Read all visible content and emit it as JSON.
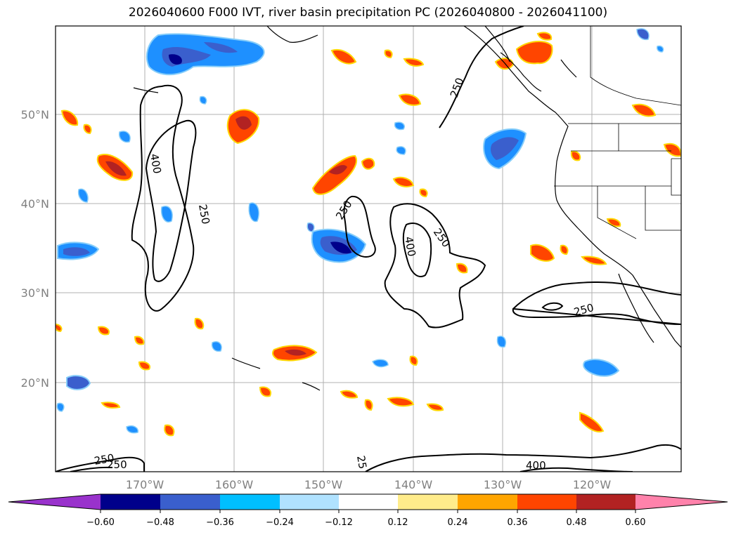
{
  "title": "2026040600 F000 IVT, river basin precipitation PC (2026040800 - 2026041100)",
  "map": {
    "longitude_labels": [
      "170°W",
      "160°W",
      "150°W",
      "140°W",
      "130°W",
      "120°W"
    ],
    "latitude_labels": [
      "50°N",
      "40°N",
      "30°N",
      "20°N"
    ],
    "contour_labels": [
      "400",
      "250",
      "250",
      "400",
      "250",
      "250",
      "250",
      "250",
      "25",
      "400"
    ]
  },
  "colorbar": {
    "tick_labels": [
      "−0.60",
      "−0.48",
      "−0.36",
      "−0.24",
      "−0.12",
      "0.12",
      "0.24",
      "0.36",
      "0.48",
      "0.60"
    ],
    "colors": [
      "#9932CC",
      "#00008B",
      "#3A5FCD",
      "#00BFFF",
      "#B0E2FF",
      "#FFFFFF",
      "#FFEC8B",
      "#FFA500",
      "#FF4500",
      "#B22222",
      "#FF82AB"
    ]
  },
  "colors": {
    "neg_strong": "#00008B",
    "neg_mid": "#3A5FCD",
    "neg_light": "#1E90FF",
    "neg_pale": "#87CEFA",
    "pos_pale": "#FFD700",
    "pos_mid": "#FFA500",
    "pos_strong": "#FF4500",
    "pos_max": "#B22222"
  }
}
